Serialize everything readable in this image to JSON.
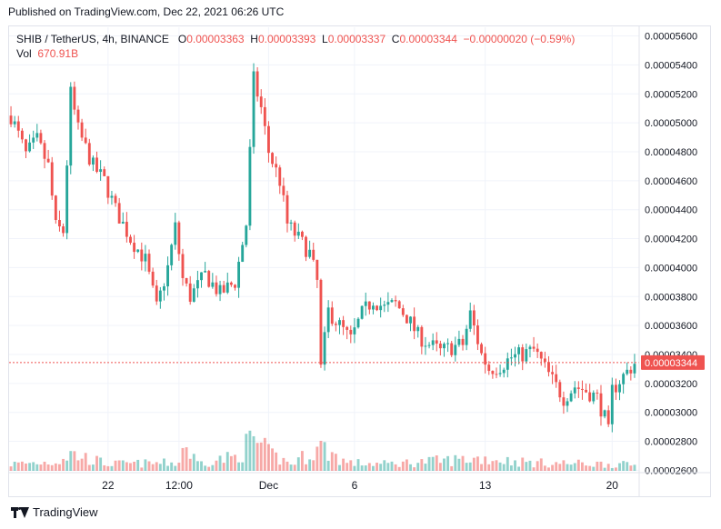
{
  "header": {
    "published": "Published on TradingView.com, Dec 22, 2021 06:26 UTC"
  },
  "legend": {
    "symbol": "SHIB / TetherUS, 4h, BINANCE",
    "o_label": "O",
    "o_value": "0.00003363",
    "h_label": "H",
    "h_value": "0.00003393",
    "l_label": "L",
    "l_value": "0.00003337",
    "c_label": "C",
    "c_value": "0.00003344",
    "change": "−0.00000020 (−0.59%)",
    "vol_label": "Vol",
    "vol_value": "670.91B"
  },
  "footer": {
    "brand": "TradingView"
  },
  "colors": {
    "up": "#26a69a",
    "down": "#ef5350",
    "grid": "#f0f3fa",
    "axis_text": "#131722",
    "price_label_bg": "#ef5350"
  },
  "chart_data": {
    "type": "candlestick",
    "symbol": "SHIB / TetherUS",
    "interval": "4h",
    "exchange": "BINANCE",
    "y_ticks": [
      "0.00005600",
      "0.00005400",
      "0.00005200",
      "0.00005000",
      "0.00004800",
      "0.00004600",
      "0.00004400",
      "0.00004200",
      "0.00004000",
      "0.00003800",
      "0.00003600",
      "0.00003400",
      "0.00003200",
      "0.00003000",
      "0.00002800",
      "0.00002600"
    ],
    "ylim": [
      2.59e-05,
      5.66e-05
    ],
    "x_ticks": [
      {
        "label": "22",
        "index": 26
      },
      {
        "label": "12:00",
        "index": 45
      },
      {
        "label": "Dec",
        "index": 69
      },
      {
        "label": "6",
        "index": 92
      },
      {
        "label": "13",
        "index": 127
      },
      {
        "label": "20",
        "index": 161
      }
    ],
    "last_price": "0.00003344",
    "last_price_value": 3.344e-05,
    "close_path": [
      [
        0,
        5.05e-05
      ],
      [
        4,
        4.78e-05
      ],
      [
        7,
        4.88e-05
      ],
      [
        10,
        4.7e-05
      ],
      [
        12,
        4.28e-05
      ],
      [
        14,
        4.25e-05
      ],
      [
        16,
        5.2e-05
      ],
      [
        18,
        4.95e-05
      ],
      [
        22,
        4.7e-05
      ],
      [
        25,
        4.6e-05
      ],
      [
        28,
        4.4e-05
      ],
      [
        32,
        4.2e-05
      ],
      [
        36,
        4.05e-05
      ],
      [
        39,
        3.72e-05
      ],
      [
        42,
        4e-05
      ],
      [
        44,
        4.28e-05
      ],
      [
        46,
        3.92e-05
      ],
      [
        48,
        3.8e-05
      ],
      [
        52,
        3.95e-05
      ],
      [
        56,
        3.82e-05
      ],
      [
        60,
        3.9e-05
      ],
      [
        63,
        4.3e-05
      ],
      [
        65,
        5.3e-05
      ],
      [
        67,
        5.1e-05
      ],
      [
        69,
        4.8e-05
      ],
      [
        72,
        4.6e-05
      ],
      [
        74,
        4.3e-05
      ],
      [
        77,
        4.2e-05
      ],
      [
        80,
        4.1e-05
      ],
      [
        82,
        3.9e-05
      ],
      [
        83,
        3.3e-05
      ],
      [
        85,
        3.7e-05
      ],
      [
        88,
        3.6e-05
      ],
      [
        91,
        3.5e-05
      ],
      [
        94,
        3.68e-05
      ],
      [
        97,
        3.78e-05
      ],
      [
        100,
        3.72e-05
      ],
      [
        103,
        3.75e-05
      ],
      [
        106,
        3.66e-05
      ],
      [
        109,
        3.53e-05
      ],
      [
        112,
        3.47e-05
      ],
      [
        115,
        3.42e-05
      ],
      [
        118,
        3.45e-05
      ],
      [
        121,
        3.47e-05
      ],
      [
        123,
        3.68e-05
      ],
      [
        126,
        3.4e-05
      ],
      [
        128,
        3.3e-05
      ],
      [
        131,
        3.32e-05
      ],
      [
        134,
        3.38e-05
      ],
      [
        137,
        3.4e-05
      ],
      [
        140,
        3.43e-05
      ],
      [
        142,
        3.35e-05
      ],
      [
        145,
        3.22e-05
      ],
      [
        148,
        3.1e-05
      ],
      [
        151,
        3.18e-05
      ],
      [
        154,
        3.15e-05
      ],
      [
        157,
        3.1e-05
      ],
      [
        159,
        2.96e-05
      ],
      [
        160,
        2.86e-05
      ],
      [
        161,
        3.15e-05
      ],
      [
        163,
        3.22e-05
      ],
      [
        165,
        3.28e-05
      ],
      [
        167,
        3.34e-05
      ]
    ],
    "volume_path": [
      [
        0,
        60
      ],
      [
        12,
        80
      ],
      [
        16,
        150
      ],
      [
        26,
        60
      ],
      [
        45,
        70
      ],
      [
        46,
        240
      ],
      [
        50,
        70
      ],
      [
        60,
        120
      ],
      [
        65,
        280
      ],
      [
        69,
        150
      ],
      [
        75,
        60
      ],
      [
        83,
        210
      ],
      [
        90,
        70
      ],
      [
        100,
        60
      ],
      [
        126,
        110
      ],
      [
        140,
        70
      ],
      [
        160,
        60
      ],
      [
        167,
        50
      ]
    ],
    "candle_count": 168
  }
}
